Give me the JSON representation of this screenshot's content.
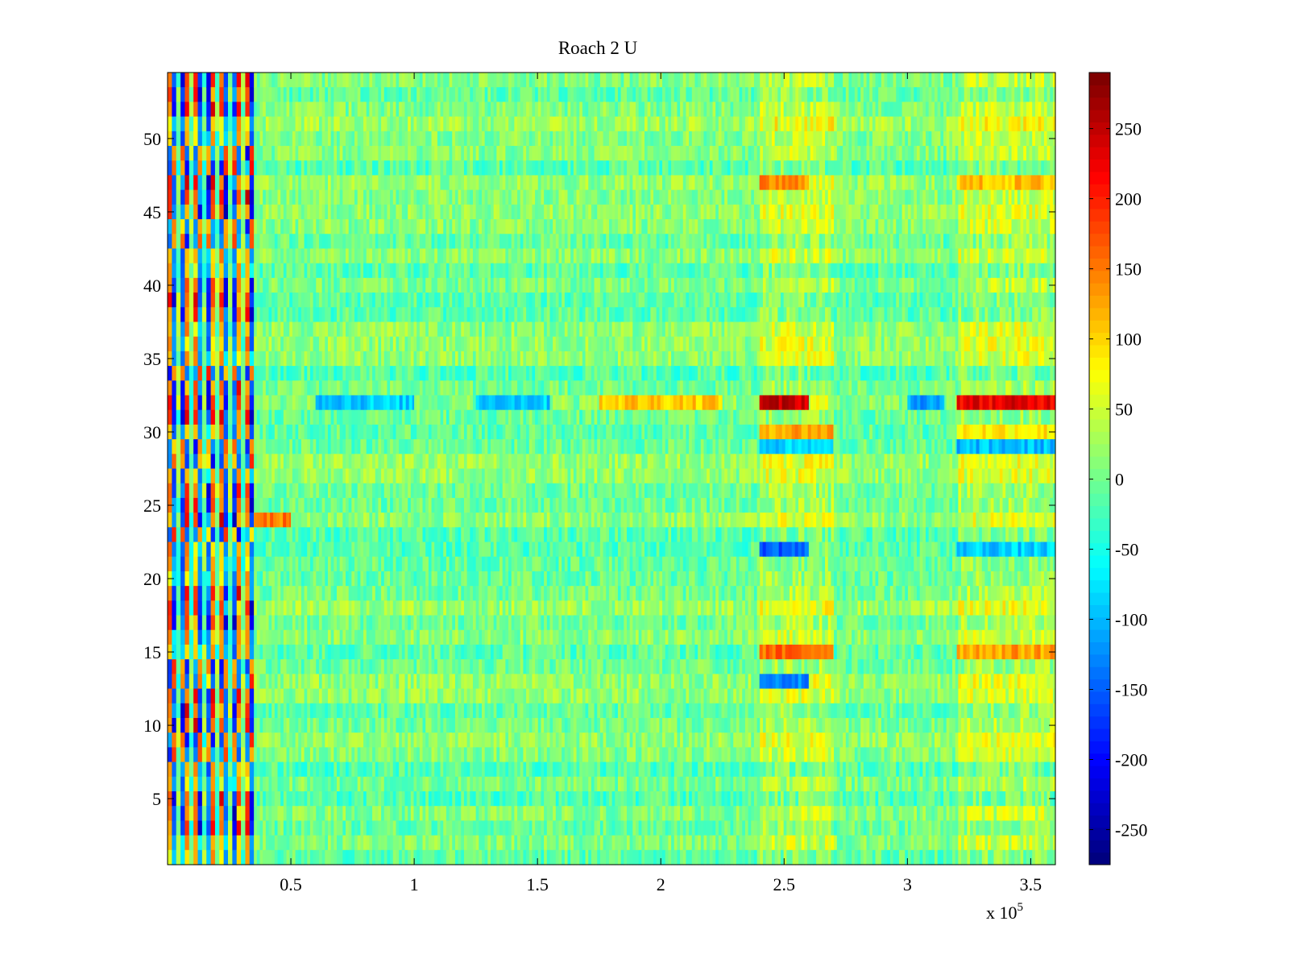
{
  "chart_data": {
    "type": "heatmap",
    "title": "Roach 2 U",
    "xlabel": "",
    "ylabel": "",
    "x_multiplier_label": "x 10",
    "x_multiplier_exponent": "5",
    "xlim": [
      0,
      3.6
    ],
    "ylim": [
      0.5,
      54.5
    ],
    "xticks": [
      0.5,
      1,
      1.5,
      2,
      2.5,
      3,
      3.5
    ],
    "xtick_labels": [
      "0.5",
      "1",
      "1.5",
      "2",
      "2.5",
      "3",
      "3.5"
    ],
    "yticks": [
      5,
      10,
      15,
      20,
      25,
      30,
      35,
      40,
      45,
      50
    ],
    "ytick_labels": [
      "5",
      "10",
      "15",
      "20",
      "25",
      "30",
      "35",
      "40",
      "45",
      "50"
    ],
    "colormap": "jet",
    "clim": [
      -275,
      290
    ],
    "colorbar_ticks": [
      250,
      200,
      150,
      100,
      50,
      0,
      -50,
      -100,
      -150,
      -200,
      -250
    ],
    "colorbar_tick_labels": [
      "250",
      "200",
      "150",
      "100",
      "50",
      "0",
      "-50",
      "-100",
      "-150",
      "-200",
      "-250"
    ],
    "rows": 54,
    "x_segments": [
      {
        "from": 0.0,
        "to": 0.35,
        "pattern": "alternating-extreme"
      },
      {
        "from": 0.35,
        "to": 2.4,
        "pattern": "moderate"
      },
      {
        "from": 2.4,
        "to": 2.7,
        "pattern": "elevated"
      },
      {
        "from": 2.7,
        "to": 3.2,
        "pattern": "moderate"
      },
      {
        "from": 3.2,
        "to": 3.6,
        "pattern": "elevated"
      }
    ],
    "notable_rows": [
      {
        "row": 32,
        "values": [
          {
            "x_from": 2.4,
            "x_to": 2.6,
            "value": 250
          },
          {
            "x_from": 3.2,
            "x_to": 3.6,
            "value": 230
          },
          {
            "x_from": 0.6,
            "x_to": 1.0,
            "value": -90
          },
          {
            "x_from": 1.25,
            "x_to": 1.55,
            "value": -90
          },
          {
            "x_from": 1.75,
            "x_to": 2.25,
            "value": 110
          },
          {
            "x_from": 3.0,
            "x_to": 3.15,
            "value": -120
          }
        ]
      },
      {
        "row": 30,
        "values": [
          {
            "x_from": 2.4,
            "x_to": 2.7,
            "value": 130
          },
          {
            "x_from": 3.2,
            "x_to": 3.6,
            "value": 90
          }
        ]
      },
      {
        "row": 29,
        "values": [
          {
            "x_from": 2.4,
            "x_to": 2.7,
            "value": -90
          },
          {
            "x_from": 3.2,
            "x_to": 3.6,
            "value": -100
          }
        ]
      },
      {
        "row": 15,
        "values": [
          {
            "x_from": 2.4,
            "x_to": 2.7,
            "value": 160
          },
          {
            "x_from": 3.2,
            "x_to": 3.6,
            "value": 130
          }
        ]
      },
      {
        "row": 22,
        "values": [
          {
            "x_from": 2.4,
            "x_to": 2.6,
            "value": -150
          },
          {
            "x_from": 3.2,
            "x_to": 3.6,
            "value": -90
          }
        ]
      },
      {
        "row": 24,
        "values": [
          {
            "x_from": 0.35,
            "x_to": 0.5,
            "value": 150
          }
        ]
      },
      {
        "row": 47,
        "values": [
          {
            "x_from": 2.4,
            "x_to": 2.6,
            "value": 140
          },
          {
            "x_from": 3.2,
            "x_to": 3.6,
            "value": 110
          }
        ]
      },
      {
        "row": 13,
        "values": [
          {
            "x_from": 2.4,
            "x_to": 2.6,
            "value": -130
          }
        ]
      }
    ]
  }
}
